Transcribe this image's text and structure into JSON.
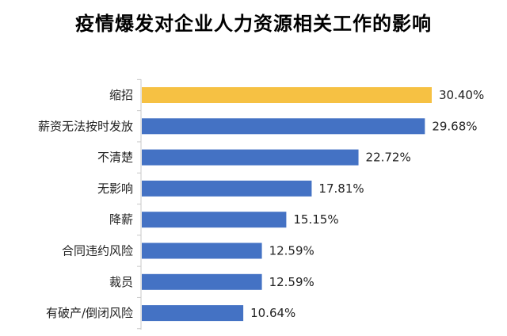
{
  "chart_data": {
    "type": "bar",
    "orientation": "horizontal",
    "title": "疫情爆发对企业人力资源相关工作的影响",
    "categories": [
      "缩招",
      "薪资无法按时发放",
      "不清楚",
      "无影响",
      "降薪",
      "合同违约风险",
      "裁员",
      "有破产/倒闭风险"
    ],
    "values": [
      30.4,
      29.68,
      22.72,
      17.81,
      15.15,
      12.59,
      12.59,
      10.64
    ],
    "value_labels": [
      "30.40%",
      "29.68%",
      "22.72%",
      "17.81%",
      "15.15%",
      "12.59%",
      "12.59%",
      "10.64%"
    ],
    "unit": "%",
    "xlim": [
      0,
      30.4
    ],
    "highlight_index": 0,
    "colors": {
      "bar": "#4472C4",
      "highlight": "#F6C143",
      "axis": "#C9C9C9"
    },
    "grid": false,
    "legend": "none"
  }
}
